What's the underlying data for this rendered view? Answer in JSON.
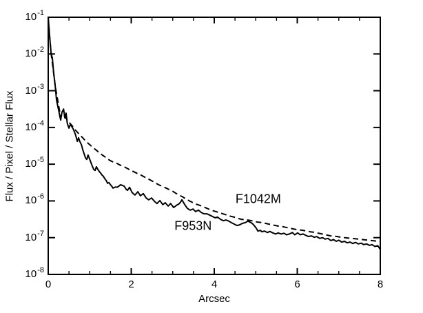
{
  "figure": {
    "background_color": "#ffffff",
    "line_color": "#000000"
  },
  "chart_data": {
    "type": "line",
    "title": "",
    "xlabel": "Arcsec",
    "ylabel": "Flux / Pixel / Stellar Flux",
    "x_range": [
      0,
      8
    ],
    "y_scale": "log10",
    "y_range_exponents": [
      -8,
      -1
    ],
    "x_major_ticks": [
      0,
      2,
      4,
      6,
      8
    ],
    "x_minor_tick_step": 0.5,
    "y_tick_exponents": [
      -1,
      -2,
      -3,
      -4,
      -5,
      -6,
      -7,
      -8
    ],
    "grid": false,
    "legend": "inline-text-annotations",
    "series": [
      {
        "name": "F953N",
        "style": "solid",
        "color": "#000000",
        "label_anchor": {
          "x": 3.49,
          "y_log": -6.68
        },
        "points": [
          [
            0.0,
            -1.0
          ],
          [
            0.03,
            -1.47
          ],
          [
            0.07,
            -1.99
          ],
          [
            0.1,
            -2.11
          ],
          [
            0.13,
            -2.5
          ],
          [
            0.17,
            -2.88
          ],
          [
            0.2,
            -3.25
          ],
          [
            0.25,
            -3.53
          ],
          [
            0.28,
            -3.7
          ],
          [
            0.3,
            -3.8
          ],
          [
            0.33,
            -3.59
          ],
          [
            0.37,
            -3.5
          ],
          [
            0.4,
            -3.74
          ],
          [
            0.43,
            -3.61
          ],
          [
            0.46,
            -3.89
          ],
          [
            0.5,
            -4.02
          ],
          [
            0.53,
            -3.93
          ],
          [
            0.56,
            -3.96
          ],
          [
            0.6,
            -4.04
          ],
          [
            0.63,
            -4.12
          ],
          [
            0.66,
            -4.21
          ],
          [
            0.7,
            -4.38
          ],
          [
            0.73,
            -4.28
          ],
          [
            0.76,
            -4.38
          ],
          [
            0.8,
            -4.47
          ],
          [
            0.83,
            -4.6
          ],
          [
            0.86,
            -4.7
          ],
          [
            0.9,
            -4.83
          ],
          [
            0.93,
            -4.87
          ],
          [
            0.96,
            -4.75
          ],
          [
            1.0,
            -4.87
          ],
          [
            1.03,
            -4.96
          ],
          [
            1.06,
            -5.05
          ],
          [
            1.1,
            -5.15
          ],
          [
            1.13,
            -5.17
          ],
          [
            1.16,
            -5.07
          ],
          [
            1.2,
            -5.15
          ],
          [
            1.23,
            -5.2
          ],
          [
            1.26,
            -5.24
          ],
          [
            1.3,
            -5.3
          ],
          [
            1.33,
            -5.33
          ],
          [
            1.36,
            -5.39
          ],
          [
            1.4,
            -5.45
          ],
          [
            1.43,
            -5.52
          ],
          [
            1.46,
            -5.5
          ],
          [
            1.5,
            -5.56
          ],
          [
            1.53,
            -5.6
          ],
          [
            1.56,
            -5.65
          ],
          [
            1.6,
            -5.63
          ],
          [
            1.63,
            -5.62
          ],
          [
            1.66,
            -5.63
          ],
          [
            1.7,
            -5.6
          ],
          [
            1.74,
            -5.56
          ],
          [
            1.79,
            -5.58
          ],
          [
            1.83,
            -5.6
          ],
          [
            1.88,
            -5.69
          ],
          [
            1.91,
            -5.71
          ],
          [
            1.96,
            -5.63
          ],
          [
            2.02,
            -5.77
          ],
          [
            2.09,
            -5.84
          ],
          [
            2.16,
            -5.75
          ],
          [
            2.22,
            -5.86
          ],
          [
            2.29,
            -5.8
          ],
          [
            2.36,
            -5.92
          ],
          [
            2.42,
            -5.97
          ],
          [
            2.49,
            -5.92
          ],
          [
            2.56,
            -6.01
          ],
          [
            2.62,
            -6.07
          ],
          [
            2.69,
            -5.99
          ],
          [
            2.76,
            -6.1
          ],
          [
            2.82,
            -6.05
          ],
          [
            2.89,
            -6.14
          ],
          [
            2.95,
            -6.07
          ],
          [
            3.02,
            -6.18
          ],
          [
            3.09,
            -6.12
          ],
          [
            3.15,
            -6.08
          ],
          [
            3.19,
            -6.03
          ],
          [
            3.22,
            -5.97
          ],
          [
            3.29,
            -6.1
          ],
          [
            3.35,
            -6.2
          ],
          [
            3.42,
            -6.25
          ],
          [
            3.49,
            -6.22
          ],
          [
            3.55,
            -6.29
          ],
          [
            3.62,
            -6.25
          ],
          [
            3.68,
            -6.31
          ],
          [
            3.75,
            -6.35
          ],
          [
            3.82,
            -6.35
          ],
          [
            3.88,
            -6.38
          ],
          [
            3.95,
            -6.42
          ],
          [
            4.02,
            -6.46
          ],
          [
            4.08,
            -6.44
          ],
          [
            4.15,
            -6.5
          ],
          [
            4.22,
            -6.54
          ],
          [
            4.28,
            -6.52
          ],
          [
            4.35,
            -6.55
          ],
          [
            4.41,
            -6.59
          ],
          [
            4.48,
            -6.63
          ],
          [
            4.55,
            -6.67
          ],
          [
            4.61,
            -6.65
          ],
          [
            4.68,
            -6.61
          ],
          [
            4.75,
            -6.59
          ],
          [
            4.81,
            -6.55
          ],
          [
            4.85,
            -6.57
          ],
          [
            4.91,
            -6.61
          ],
          [
            4.95,
            -6.65
          ],
          [
            5.01,
            -6.74
          ],
          [
            5.05,
            -6.82
          ],
          [
            5.11,
            -6.8
          ],
          [
            5.15,
            -6.84
          ],
          [
            5.21,
            -6.82
          ],
          [
            5.28,
            -6.86
          ],
          [
            5.34,
            -6.83
          ],
          [
            5.41,
            -6.87
          ],
          [
            5.48,
            -6.9
          ],
          [
            5.54,
            -6.87
          ],
          [
            5.61,
            -6.9
          ],
          [
            5.68,
            -6.88
          ],
          [
            5.74,
            -6.92
          ],
          [
            5.81,
            -6.9
          ],
          [
            5.88,
            -6.86
          ],
          [
            5.94,
            -6.92
          ],
          [
            6.01,
            -6.87
          ],
          [
            6.07,
            -6.92
          ],
          [
            6.14,
            -6.9
          ],
          [
            6.21,
            -6.94
          ],
          [
            6.27,
            -6.97
          ],
          [
            6.34,
            -6.95
          ],
          [
            6.41,
            -6.99
          ],
          [
            6.47,
            -6.97
          ],
          [
            6.54,
            -7.02
          ],
          [
            6.61,
            -7.0
          ],
          [
            6.67,
            -7.04
          ],
          [
            6.74,
            -7.02
          ],
          [
            6.81,
            -7.08
          ],
          [
            6.87,
            -7.05
          ],
          [
            6.94,
            -7.1
          ],
          [
            7.0,
            -7.07
          ],
          [
            7.07,
            -7.12
          ],
          [
            7.14,
            -7.1
          ],
          [
            7.2,
            -7.14
          ],
          [
            7.27,
            -7.12
          ],
          [
            7.34,
            -7.16
          ],
          [
            7.4,
            -7.13
          ],
          [
            7.47,
            -7.17
          ],
          [
            7.54,
            -7.15
          ],
          [
            7.6,
            -7.19
          ],
          [
            7.67,
            -7.17
          ],
          [
            7.74,
            -7.21
          ],
          [
            7.8,
            -7.19
          ],
          [
            7.87,
            -7.24
          ],
          [
            7.94,
            -7.22
          ],
          [
            8.0,
            -7.32
          ]
        ]
      },
      {
        "name": "F1042M",
        "style": "dashed",
        "color": "#000000",
        "label_anchor": {
          "x": 5.06,
          "y_log": -5.95
        },
        "points": [
          [
            0.0,
            -1.0
          ],
          [
            0.03,
            -1.47
          ],
          [
            0.07,
            -1.99
          ],
          [
            0.12,
            -2.41
          ],
          [
            0.17,
            -2.88
          ],
          [
            0.22,
            -3.21
          ],
          [
            0.27,
            -3.53
          ],
          [
            0.3,
            -3.72
          ],
          [
            0.33,
            -3.62
          ],
          [
            0.37,
            -3.66
          ],
          [
            0.41,
            -3.72
          ],
          [
            0.46,
            -3.8
          ],
          [
            0.51,
            -3.87
          ],
          [
            0.58,
            -3.96
          ],
          [
            0.66,
            -4.08
          ],
          [
            0.75,
            -4.19
          ],
          [
            0.83,
            -4.28
          ],
          [
            0.91,
            -4.38
          ],
          [
            1.0,
            -4.47
          ],
          [
            1.08,
            -4.55
          ],
          [
            1.16,
            -4.62
          ],
          [
            1.24,
            -4.7
          ],
          [
            1.33,
            -4.77
          ],
          [
            1.41,
            -4.84
          ],
          [
            1.49,
            -4.9
          ],
          [
            1.58,
            -4.95
          ],
          [
            1.66,
            -4.98
          ],
          [
            1.74,
            -5.03
          ],
          [
            1.83,
            -5.07
          ],
          [
            1.91,
            -5.12
          ],
          [
            1.99,
            -5.17
          ],
          [
            2.07,
            -5.21
          ],
          [
            2.16,
            -5.26
          ],
          [
            2.24,
            -5.3
          ],
          [
            2.32,
            -5.35
          ],
          [
            2.41,
            -5.4
          ],
          [
            2.49,
            -5.45
          ],
          [
            2.57,
            -5.5
          ],
          [
            2.66,
            -5.56
          ],
          [
            2.74,
            -5.6
          ],
          [
            2.82,
            -5.64
          ],
          [
            2.91,
            -5.69
          ],
          [
            2.99,
            -5.73
          ],
          [
            3.07,
            -5.79
          ],
          [
            3.15,
            -5.84
          ],
          [
            3.24,
            -5.89
          ],
          [
            3.32,
            -5.95
          ],
          [
            3.4,
            -6.0
          ],
          [
            3.49,
            -6.05
          ],
          [
            3.57,
            -6.09
          ],
          [
            3.65,
            -6.12
          ],
          [
            3.74,
            -6.16
          ],
          [
            3.82,
            -6.2
          ],
          [
            3.9,
            -6.24
          ],
          [
            3.98,
            -6.27
          ],
          [
            4.07,
            -6.3
          ],
          [
            4.15,
            -6.33
          ],
          [
            4.23,
            -6.36
          ],
          [
            4.32,
            -6.39
          ],
          [
            4.4,
            -6.42
          ],
          [
            4.48,
            -6.44
          ],
          [
            4.56,
            -6.47
          ],
          [
            4.65,
            -6.5
          ],
          [
            4.73,
            -6.51
          ],
          [
            4.81,
            -6.52
          ],
          [
            4.9,
            -6.54
          ],
          [
            4.98,
            -6.56
          ],
          [
            5.06,
            -6.58
          ],
          [
            5.15,
            -6.59
          ],
          [
            5.23,
            -6.61
          ],
          [
            5.31,
            -6.63
          ],
          [
            5.39,
            -6.65
          ],
          [
            5.48,
            -6.67
          ],
          [
            5.56,
            -6.69
          ],
          [
            5.64,
            -6.7
          ],
          [
            5.73,
            -6.72
          ],
          [
            5.81,
            -6.74
          ],
          [
            5.89,
            -6.76
          ],
          [
            5.98,
            -6.78
          ],
          [
            6.06,
            -6.79
          ],
          [
            6.14,
            -6.8
          ],
          [
            6.22,
            -6.82
          ],
          [
            6.31,
            -6.84
          ],
          [
            6.39,
            -6.85
          ],
          [
            6.47,
            -6.87
          ],
          [
            6.56,
            -6.89
          ],
          [
            6.64,
            -6.91
          ],
          [
            6.72,
            -6.93
          ],
          [
            6.8,
            -6.95
          ],
          [
            6.89,
            -6.96
          ],
          [
            6.97,
            -6.97
          ],
          [
            7.05,
            -6.99
          ],
          [
            7.14,
            -7.0
          ],
          [
            7.22,
            -7.01
          ],
          [
            7.3,
            -7.02
          ],
          [
            7.39,
            -7.03
          ],
          [
            7.47,
            -7.04
          ],
          [
            7.55,
            -7.05
          ],
          [
            7.63,
            -7.06
          ],
          [
            7.72,
            -7.07
          ],
          [
            7.8,
            -7.08
          ],
          [
            7.88,
            -7.09
          ],
          [
            8.0,
            -7.1
          ]
        ]
      }
    ]
  }
}
